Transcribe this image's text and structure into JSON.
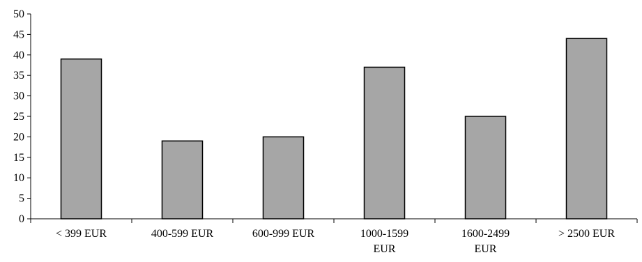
{
  "chart_data": {
    "type": "bar",
    "title": "",
    "xlabel": "",
    "ylabel": "",
    "categories": [
      [
        "< 399 EUR"
      ],
      [
        "400-599 EUR"
      ],
      [
        "600-999 EUR"
      ],
      [
        "1000-1599",
        "EUR"
      ],
      [
        "1600-2499",
        "EUR"
      ],
      [
        "> 2500 EUR"
      ]
    ],
    "values": [
      39,
      19,
      20,
      37,
      25,
      44
    ],
    "ylim": [
      0,
      50
    ],
    "yticks": [
      0,
      5,
      10,
      15,
      20,
      25,
      30,
      35,
      40,
      45,
      50
    ],
    "grid": false,
    "legend": "none",
    "bar_color": "#a6a6a6"
  }
}
